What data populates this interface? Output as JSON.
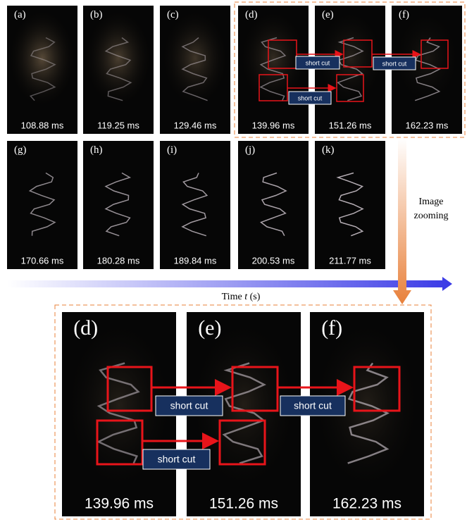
{
  "panels": [
    {
      "label": "(a)",
      "time": "108.88 ms"
    },
    {
      "label": "(b)",
      "time": "119.25 ms"
    },
    {
      "label": "(c)",
      "time": "129.46 ms"
    },
    {
      "label": "(d)",
      "time": "139.96 ms"
    },
    {
      "label": "(e)",
      "time": "151.26 ms"
    },
    {
      "label": "(f)",
      "time": "162.23 ms"
    },
    {
      "label": "(g)",
      "time": "170.66 ms"
    },
    {
      "label": "(h)",
      "time": "180.28 ms"
    },
    {
      "label": "(i)",
      "time": "189.84 ms"
    },
    {
      "label": "(j)",
      "time": "200.53 ms"
    },
    {
      "label": "(k)",
      "time": "211.77 ms"
    }
  ],
  "small_short_cuts": [
    "short cut",
    "short cut",
    "short cut"
  ],
  "zoom_panels": [
    {
      "label": "(d)",
      "time": "139.96 ms"
    },
    {
      "label": "(e)",
      "time": "151.26 ms"
    },
    {
      "label": "(f)",
      "time": "162.23 ms"
    }
  ],
  "zoom_short_cuts": [
    "short cut",
    "short cut",
    "short cut"
  ],
  "zoom_note": {
    "line1": "Image",
    "line2": "zooming"
  },
  "time_axis": {
    "prefix": "Time",
    "variable": "t",
    "unit": "(s)"
  }
}
